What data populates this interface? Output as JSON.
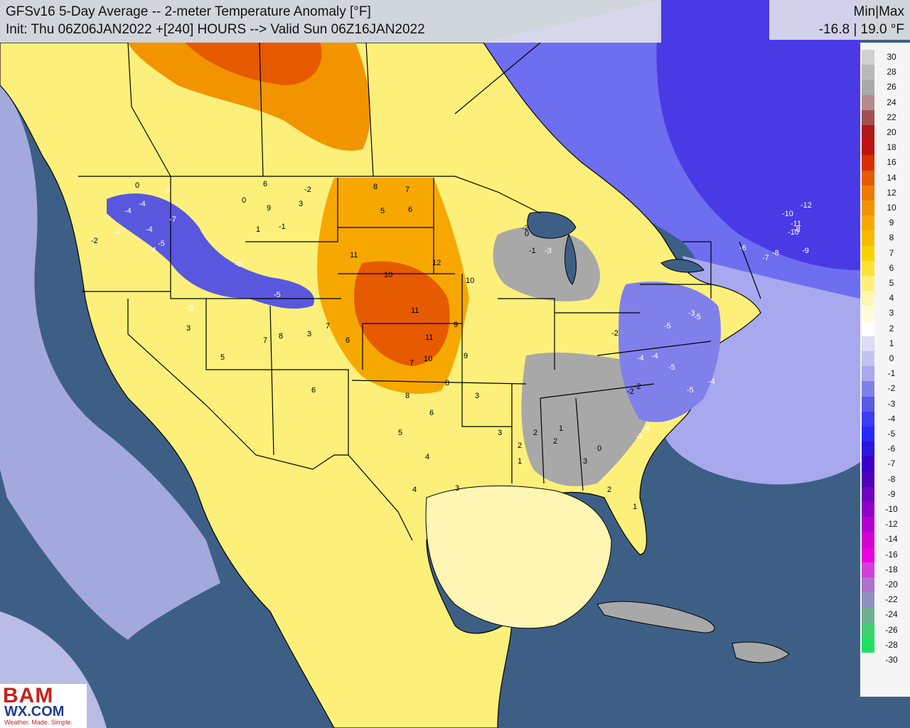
{
  "header": {
    "title": "GFSv16 5-Day Average -- 2-meter Temperature Anomaly [°F]",
    "init": "Init: Thu 06Z06JAN2022 +[240] HOURS --> Valid Sun 06Z16JAN2022"
  },
  "minmax": {
    "label": "Min|Max",
    "value": "-16.8 | 19.0 °F"
  },
  "legend": {
    "ticks": [
      "30",
      "28",
      "26",
      "24",
      "22",
      "20",
      "18",
      "16",
      "14",
      "12",
      "10",
      "9",
      "8",
      "7",
      "6",
      "5",
      "4",
      "3",
      "2",
      "1",
      "0",
      "-1",
      "-2",
      "-3",
      "-4",
      "-5",
      "-6",
      "-7",
      "-8",
      "-9",
      "-10",
      "-12",
      "-14",
      "-16",
      "-18",
      "-20",
      "-22",
      "-24",
      "-26",
      "-28",
      "-30"
    ],
    "colors": [
      "#d0d0d0",
      "#b9b9b9",
      "#aaaaaa",
      "#b48a8a",
      "#a05050",
      "#b01818",
      "#c01010",
      "#d83000",
      "#e65a00",
      "#f07a00",
      "#f29400",
      "#f6a800",
      "#f8bb00",
      "#fad200",
      "#fce33a",
      "#fdf07a",
      "#fef6b2",
      "#fffbd8",
      "#ffffff",
      "#dcdcf6",
      "#c3c3f2",
      "#a8a8ee",
      "#8080ea",
      "#5a5ae6",
      "#3c3cf0",
      "#2828ff",
      "#2c14e0",
      "#3a00c8",
      "#5000b8",
      "#7200c0",
      "#9000c8",
      "#b000d2",
      "#d200d2",
      "#e800e0",
      "#d040d8",
      "#b070d0",
      "#9090c0",
      "#70b090",
      "#40d070",
      "#20e060"
    ]
  },
  "map": {
    "ocean_color": "#3d5f86",
    "anomaly_labels": [
      {
        "v": "0"
      },
      {
        "v": "-3"
      },
      {
        "v": "-4"
      },
      {
        "v": "-4"
      },
      {
        "v": "-7"
      },
      {
        "v": "-4"
      },
      {
        "v": "-4"
      },
      {
        "v": "-2"
      },
      {
        "v": "-5"
      },
      {
        "v": "-4"
      },
      {
        "v": "-3"
      },
      {
        "v": "6"
      },
      {
        "v": "-2"
      },
      {
        "v": "0"
      },
      {
        "v": "9"
      },
      {
        "v": "3"
      },
      {
        "v": "1"
      },
      {
        "v": "-1"
      },
      {
        "v": "-8"
      },
      {
        "v": "-5"
      },
      {
        "v": "8"
      },
      {
        "v": "7"
      },
      {
        "v": "5"
      },
      {
        "v": "6"
      },
      {
        "v": "11"
      },
      {
        "v": "10"
      },
      {
        "v": "11"
      },
      {
        "v": "12"
      },
      {
        "v": "10"
      },
      {
        "v": "9"
      },
      {
        "v": "11"
      },
      {
        "v": "9"
      },
      {
        "v": "8"
      },
      {
        "v": "7"
      },
      {
        "v": "10"
      },
      {
        "v": "6"
      },
      {
        "v": "8"
      },
      {
        "v": "3"
      },
      {
        "v": "7"
      },
      {
        "v": "8"
      },
      {
        "v": "6"
      },
      {
        "v": "7"
      },
      {
        "v": "3"
      },
      {
        "v": "5"
      },
      {
        "v": "6"
      },
      {
        "v": "5"
      },
      {
        "v": "4"
      },
      {
        "v": "3"
      },
      {
        "v": "3"
      },
      {
        "v": "4"
      },
      {
        "v": "3"
      },
      {
        "v": "2"
      },
      {
        "v": "-2"
      },
      {
        "v": "-1"
      },
      {
        "v": "-3"
      },
      {
        "v": "0"
      },
      {
        "v": "-2"
      },
      {
        "v": "-4"
      },
      {
        "v": "-5"
      },
      {
        "v": "-3"
      },
      {
        "v": "-5"
      },
      {
        "v": "-2"
      },
      {
        "v": "-4"
      },
      {
        "v": "-5"
      },
      {
        "v": "-5"
      },
      {
        "v": "-4"
      },
      {
        "v": "-6"
      },
      {
        "v": "-7"
      },
      {
        "v": "-8"
      },
      {
        "v": "-10"
      },
      {
        "v": "-12"
      },
      {
        "v": "-11"
      },
      {
        "v": "-10"
      },
      {
        "v": "-8"
      },
      {
        "v": "-9"
      },
      {
        "v": "-4"
      },
      {
        "v": "-3"
      },
      {
        "v": "-2"
      },
      {
        "v": "2"
      },
      {
        "v": "1"
      },
      {
        "v": "0"
      },
      {
        "v": "1"
      },
      {
        "v": "2"
      },
      {
        "v": "3"
      },
      {
        "v": "1"
      },
      {
        "v": "2"
      }
    ]
  },
  "logo": {
    "main": "BAM",
    "mid": "WX.COM",
    "tagline": "Weather. Made. Simple."
  }
}
